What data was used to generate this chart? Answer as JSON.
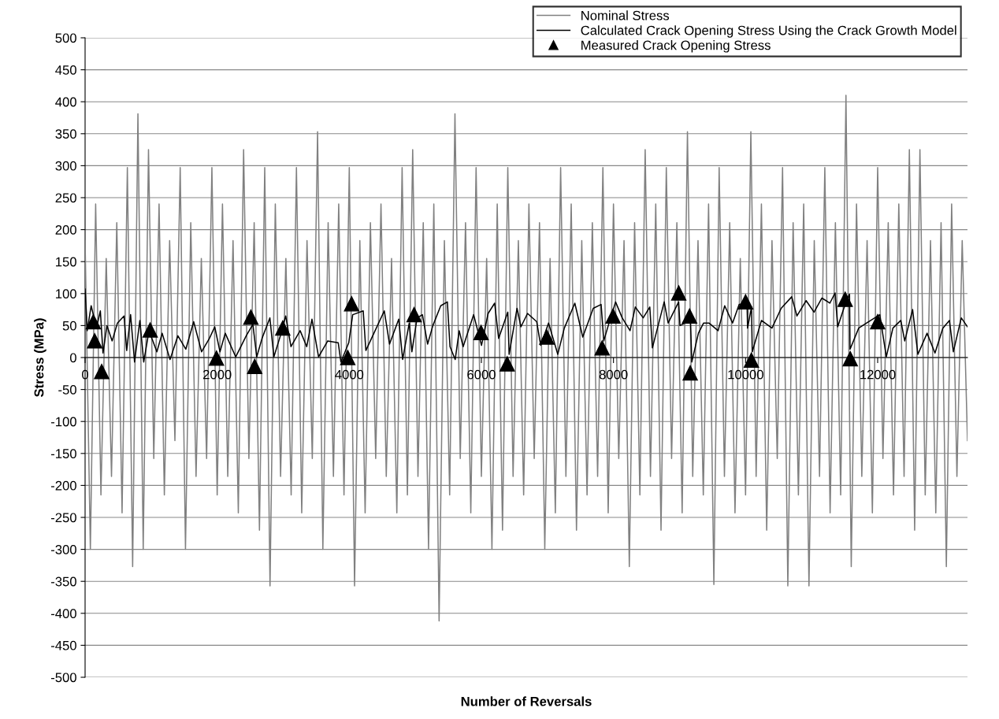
{
  "chart_data": {
    "type": "line",
    "xlabel": "Number of Reversals",
    "ylabel": "Stress (MPa)",
    "xlim": [
      0,
      13360
    ],
    "xticks": [
      0,
      2000,
      4000,
      6000,
      8000,
      10000,
      12000
    ],
    "ylim": [
      -500,
      500
    ],
    "yticks": [
      -500,
      -450,
      -400,
      -350,
      -300,
      -250,
      -200,
      -150,
      -100,
      -50,
      0,
      50,
      100,
      150,
      200,
      250,
      300,
      350,
      400,
      450,
      500
    ],
    "grid": "y",
    "legend": "top right",
    "series": [
      {
        "name": "Nominal Stress",
        "type": "line",
        "color": "#808080",
        "marker": "none",
        "x": [
          0,
          80,
          160,
          240,
          320,
          400,
          480,
          560,
          640,
          720,
          800,
          880,
          960,
          1040,
          1120,
          1200,
          1280,
          1360,
          1440,
          1520,
          1600,
          1680,
          1760,
          1840,
          1920,
          2000,
          2080,
          2160,
          2240,
          2320,
          2400,
          2480,
          2560,
          2640,
          2720,
          2800,
          2880,
          2960,
          3040,
          3120,
          3200,
          3280,
          3360,
          3440,
          3520,
          3600,
          3680,
          3760,
          3840,
          3920,
          4000,
          4080,
          4160,
          4240,
          4320,
          4400,
          4480,
          4560,
          4640,
          4720,
          4800,
          4880,
          4960,
          5040,
          5120,
          5200,
          5280,
          5360,
          5440,
          5520,
          5600,
          5680,
          5760,
          5840,
          5920,
          6000,
          6080,
          6160,
          6240,
          6320,
          6400,
          6480,
          6560,
          6640,
          6720,
          6800,
          6880,
          6960,
          7040,
          7120,
          7200,
          7280,
          7360,
          7440,
          7520,
          7600,
          7680,
          7760,
          7840,
          7920,
          8000,
          8080,
          8160,
          8240,
          8320,
          8400,
          8480,
          8560,
          8640,
          8720,
          8800,
          8880,
          8960,
          9040,
          9120,
          9200,
          9280,
          9360,
          9440,
          9520,
          9600,
          9680,
          9760,
          9840,
          9920,
          10000,
          10080,
          10160,
          10240,
          10320,
          10400,
          10480,
          10560,
          10640,
          10720,
          10800,
          10880,
          10960,
          11040,
          11120,
          11200,
          11280,
          11360,
          11440,
          11520,
          11600,
          11680,
          11760,
          11840,
          11920,
          12000,
          12080,
          12160,
          12240,
          12320,
          12400,
          12480,
          12560,
          12640,
          12720,
          12800,
          12880,
          12960,
          13040,
          13120,
          13200,
          13280,
          13360
        ],
        "values": [
          183,
          -300,
          240,
          -215,
          155,
          -186,
          211,
          -243,
          297,
          -327,
          381,
          -300,
          325,
          -158,
          240,
          -215,
          183,
          -130,
          297,
          -300,
          211,
          -186,
          155,
          -158,
          297,
          -215,
          240,
          -186,
          183,
          -243,
          325,
          -158,
          211,
          -270,
          297,
          -357,
          240,
          -186,
          155,
          -215,
          297,
          -243,
          183,
          -158,
          353,
          -300,
          211,
          -186,
          240,
          -215,
          297,
          -357,
          183,
          -243,
          211,
          -158,
          240,
          -186,
          155,
          -243,
          297,
          -215,
          325,
          -186,
          211,
          -300,
          240,
          -412,
          183,
          -215,
          381,
          -158,
          211,
          -243,
          297,
          -186,
          155,
          -300,
          240,
          -270,
          297,
          -186,
          183,
          -215,
          240,
          -158,
          211,
          -300,
          155,
          -243,
          297,
          -186,
          240,
          -270,
          183,
          -215,
          211,
          -186,
          297,
          -243,
          240,
          -158,
          183,
          -327,
          211,
          -215,
          325,
          -186,
          240,
          -270,
          297,
          -158,
          211,
          -243,
          353,
          -186,
          183,
          -215,
          240,
          -355,
          297,
          -186,
          211,
          -243,
          155,
          -215,
          353,
          -186,
          240,
          -270,
          183,
          -158,
          297,
          -357,
          211,
          -215,
          240,
          -357,
          183,
          -186,
          297,
          -243,
          211,
          -215,
          410,
          -327,
          240,
          -186,
          183,
          -243,
          297,
          -158,
          211,
          -215,
          240,
          -186,
          325,
          -270,
          325,
          -215,
          183,
          -243,
          211,
          -327,
          240,
          -186,
          183,
          -130
        ]
      },
      {
        "name": "Calculated Crack Opening Stress Using the Crack Growth Model",
        "type": "line",
        "color": "#000000",
        "marker": "none",
        "x": [
          0,
          32,
          92,
          172,
          231,
          271,
          331,
          410,
          490,
          590,
          630,
          689,
          749,
          829,
          888,
          968,
          1087,
          1167,
          1286,
          1405,
          1525,
          1644,
          1764,
          1883,
          1963,
          2042,
          2122,
          2281,
          2440,
          2540,
          2599,
          2679,
          2798,
          2858,
          2957,
          3037,
          3117,
          3256,
          3356,
          3435,
          3535,
          3674,
          3833,
          3873,
          3992,
          4052,
          4211,
          4251,
          4391,
          4530,
          4609,
          4749,
          4808,
          4908,
          4948,
          5027,
          5107,
          5186,
          5266,
          5385,
          5485,
          5525,
          5604,
          5664,
          5724,
          5883,
          6002,
          6102,
          6201,
          6261,
          6400,
          6420,
          6540,
          6599,
          6699,
          6838,
          6898,
          7017,
          7157,
          7256,
          7415,
          7535,
          7694,
          7813,
          7853,
          7933,
          8032,
          8132,
          8251,
          8331,
          8450,
          8550,
          8589,
          8768,
          8828,
          8987,
          9007,
          9166,
          9186,
          9286,
          9365,
          9445,
          9584,
          9684,
          9803,
          9903,
          10022,
          10030,
          10090,
          10101,
          10241,
          10400,
          10539,
          10699,
          10778,
          10917,
          11037,
          11156,
          11276,
          11355,
          11395,
          11495,
          11574,
          11582,
          11713,
          11833,
          12032,
          12131,
          12231,
          12350,
          12410,
          12529,
          12609,
          12748,
          12868,
          12987,
          13086,
          13146,
          13266,
          13360
        ],
        "values": [
          107,
          42,
          81,
          46,
          73,
          7,
          50,
          26,
          54,
          65,
          11,
          67,
          -7,
          58,
          -7,
          42,
          9,
          38,
          -3,
          34,
          13,
          56,
          9,
          30,
          48,
          9,
          38,
          1,
          34,
          52,
          1,
          30,
          62,
          1,
          34,
          65,
          17,
          42,
          17,
          60,
          1,
          26,
          23,
          -7,
          23,
          67,
          73,
          11,
          42,
          73,
          21,
          60,
          -3,
          54,
          9,
          62,
          67,
          21,
          50,
          81,
          87,
          17,
          -3,
          42,
          17,
          67,
          19,
          69,
          85,
          30,
          71,
          5,
          77,
          48,
          69,
          56,
          19,
          54,
          5,
          46,
          85,
          32,
          77,
          83,
          26,
          54,
          87,
          62,
          42,
          79,
          62,
          79,
          15,
          87,
          54,
          87,
          50,
          58,
          -7,
          38,
          54,
          54,
          42,
          81,
          54,
          83,
          87,
          46,
          79,
          9,
          58,
          46,
          77,
          95,
          65,
          89,
          71,
          93,
          85,
          101,
          48,
          79,
          99,
          13,
          46,
          54,
          67,
          1,
          46,
          58,
          26,
          75,
          5,
          38,
          7,
          46,
          58,
          9,
          62,
          48
        ]
      },
      {
        "name": "Measured Crack Opening Stress",
        "type": "scatter",
        "color": "#000000",
        "marker": "triangle",
        "x": [
          125,
          145,
          251,
          985,
          1989,
          2510,
          2568,
          2993,
          3977,
          4035,
          4981,
          5995,
          6391,
          6990,
          7829,
          7994,
          8988,
          9152,
          9162,
          10000,
          10088,
          11508,
          11585,
          12000
        ],
        "values": [
          56,
          26,
          -22,
          43,
          -1,
          63,
          -14,
          46,
          0,
          84,
          67,
          39,
          -10,
          32,
          15,
          65,
          101,
          65,
          -24,
          87,
          -4,
          91,
          -2,
          56
        ]
      }
    ]
  }
}
